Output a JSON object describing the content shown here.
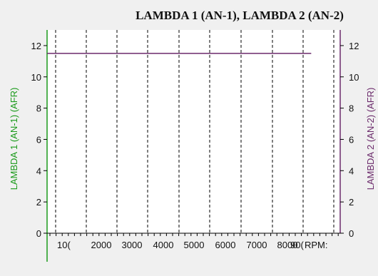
{
  "chart_data": {
    "type": "line",
    "title": "LAMBDA 1 (AN-1), LAMBDA 2 (AN-2)",
    "ylabel_left": "LAMBDA 1 (AN-1) (AFR)",
    "ylabel_right": "LAMBDA 2 (AN-2) (AFR)",
    "y_left_ticks": [
      "0",
      "2",
      "4",
      "6",
      "8",
      "10",
      "12"
    ],
    "y_right_ticks": [
      "0",
      "2",
      "4",
      "6",
      "8",
      "10",
      "12"
    ],
    "ylim": [
      0,
      13
    ],
    "x_ticks": [
      "10(",
      "2000",
      "3000",
      "4000",
      "5000",
      "6000",
      "7000",
      "8000",
      "90(",
      "RPM:"
    ],
    "xlim": [
      700,
      9800
    ],
    "grid_x": true,
    "grid_style": "dashed",
    "series": [
      {
        "values": [
          [
            700,
            11.5
          ],
          [
            8900,
            11.5
          ]
        ],
        "color": "#6b2a6b",
        "axis": "right"
      }
    ],
    "colors": {
      "left_axis": "#1a9a1a",
      "right_axis": "#6b2a6b"
    }
  }
}
